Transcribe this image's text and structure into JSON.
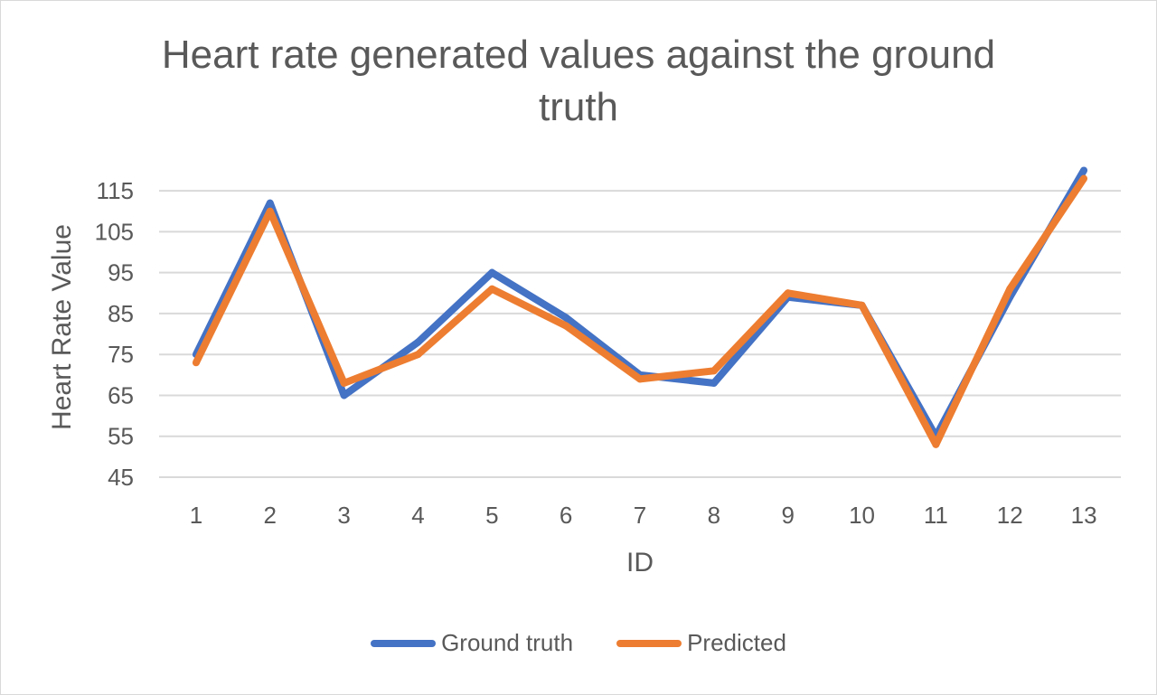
{
  "chart_data": {
    "type": "line",
    "title": "Heart rate generated values against the ground truth",
    "xlabel": "ID",
    "ylabel": "Heart Rate Value",
    "x": [
      "1",
      "2",
      "3",
      "4",
      "5",
      "6",
      "7",
      "8",
      "9",
      "10",
      "11",
      "12",
      "13"
    ],
    "y_ticks": [
      "45",
      "55",
      "65",
      "75",
      "85",
      "95",
      "105",
      "115"
    ],
    "ylim": [
      45,
      119
    ],
    "grid": true,
    "legend_position": "bottom",
    "series": [
      {
        "name": "Ground truth",
        "color": "#4472C4",
        "values": [
          75,
          112,
          65,
          78,
          95,
          84,
          70,
          68,
          89,
          87,
          55,
          89,
          120
        ]
      },
      {
        "name": "Predicted",
        "color": "#ED7D31",
        "values": [
          73,
          110,
          68,
          75,
          91,
          82,
          69,
          71,
          90,
          87,
          53,
          91,
          118
        ]
      }
    ]
  }
}
